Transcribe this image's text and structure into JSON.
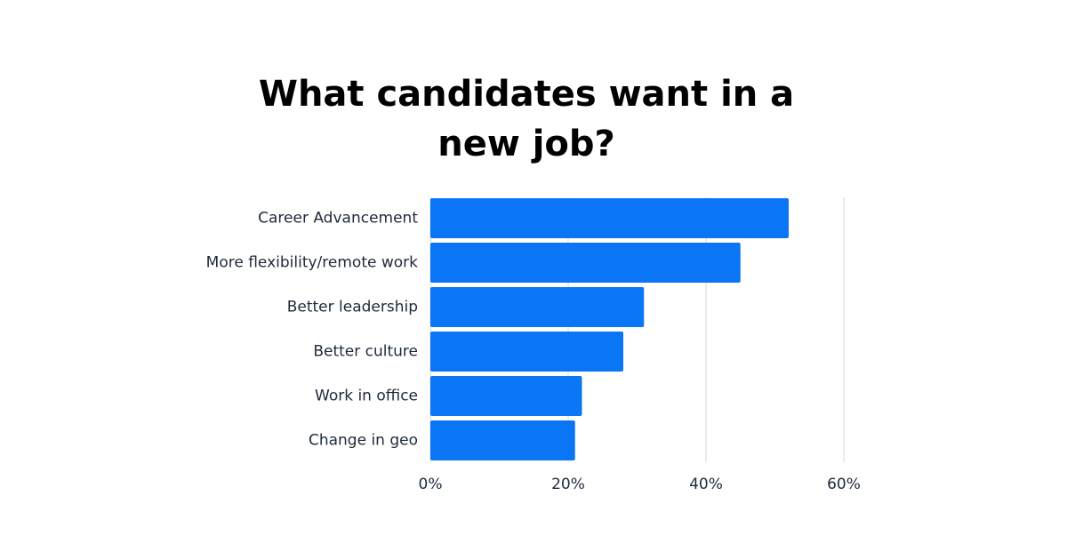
{
  "chart_data": {
    "type": "bar",
    "orientation": "horizontal",
    "title_lines": [
      "What candidates want in a",
      "new job?"
    ],
    "categories": [
      "Career Advancement",
      "More flexibility/remote work",
      "Better leadership",
      "Better culture",
      "Work in office",
      "Change in geo"
    ],
    "values": [
      52,
      45,
      31,
      28,
      22,
      21
    ],
    "xlim": [
      0,
      60
    ],
    "xticks": [
      0,
      20,
      40,
      60
    ],
    "xtick_labels": [
      "0%",
      "20%",
      "40%",
      "60%"
    ],
    "xlabel": "",
    "ylabel": "",
    "grid": "vertical",
    "legend": "none",
    "bar_color": "#0a76f6",
    "grid_color": "#d9d9d9"
  }
}
